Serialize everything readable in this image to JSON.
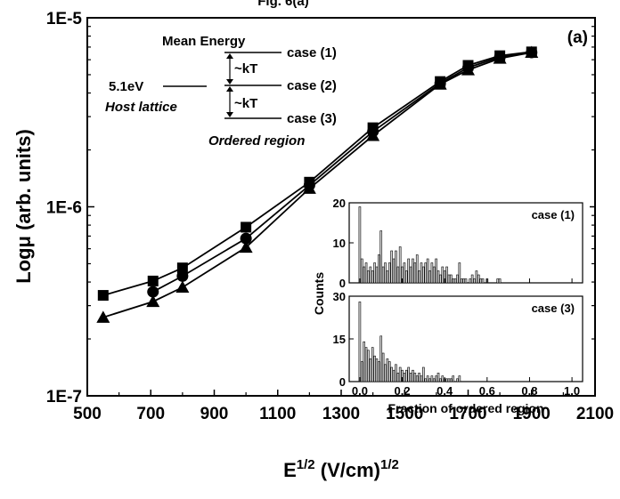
{
  "chart_data": [
    {
      "type": "line",
      "top_title": "Fig. 6(a)",
      "panel_label": "(a)",
      "xlabel": "E1/2 (V/cm)1/2",
      "xlabel_base": "E",
      "xlabel_sup1": "1/2",
      "xlabel_mid": " (V/cm)",
      "xlabel_sup2": "1/2",
      "ylabel": "Logμ (arb. units)",
      "xlim": [
        500,
        2100
      ],
      "ylim": [
        1e-07,
        1e-05
      ],
      "yscale": "log",
      "xticks": [
        500,
        700,
        900,
        1100,
        1300,
        1500,
        1700,
        1900,
        2100
      ],
      "xtick_labels": [
        "500",
        "700",
        "900",
        "1100",
        "1300",
        "1500",
        "1700",
        "1900",
        "2100"
      ],
      "yticks": [
        1e-07,
        1e-06,
        1e-05
      ],
      "ytick_labels": [
        "1E-7",
        "1E-6",
        "1E-5"
      ],
      "series": [
        {
          "marker": "square",
          "x": [
            550,
            707,
            800,
            1000,
            1200,
            1400,
            1612,
            1700,
            1800,
            1900
          ],
          "y": [
            3.4e-07,
            4.05e-07,
            4.75e-07,
            7.8e-07,
            1.35e-06,
            2.62e-06,
            4.6e-06,
            5.6e-06,
            6.3e-06,
            6.6e-06
          ]
        },
        {
          "marker": "circle",
          "x": [
            707,
            800,
            1000,
            1200,
            1400,
            1612,
            1700,
            1800,
            1900
          ],
          "y": [
            3.55e-07,
            4.3e-07,
            6.8e-07,
            1.3e-06,
            2.5e-06,
            4.5e-06,
            5.45e-06,
            6.2e-06,
            6.55e-06
          ]
        },
        {
          "marker": "triangle",
          "x": [
            550,
            707,
            800,
            1000,
            1200,
            1400,
            1612,
            1700,
            1800,
            1900
          ],
          "y": [
            2.6e-07,
            3.15e-07,
            3.75e-07,
            6.1e-07,
            1.25e-06,
            2.38e-06,
            4.45e-06,
            5.3e-06,
            6.1e-06,
            6.55e-06
          ]
        }
      ],
      "annotations": {
        "mean_energy": "Mean Energy",
        "case1": "case (1)",
        "case2": "case (2)",
        "case3": "case (3)",
        "kt": "~kT",
        "host_energy": "5.1eV",
        "host_lattice": "Host lattice",
        "ordered_region": "Ordered region"
      }
    },
    {
      "type": "bar",
      "title": "case (1)",
      "xlim": [
        -0.05,
        1.05
      ],
      "ylim": [
        0,
        20
      ],
      "yticks": [
        0,
        10,
        20
      ],
      "x": [
        0.0,
        0.01,
        0.02,
        0.03,
        0.04,
        0.05,
        0.06,
        0.07,
        0.08,
        0.09,
        0.1,
        0.11,
        0.12,
        0.13,
        0.14,
        0.15,
        0.16,
        0.17,
        0.18,
        0.19,
        0.2,
        0.21,
        0.22,
        0.23,
        0.24,
        0.25,
        0.26,
        0.27,
        0.28,
        0.29,
        0.3,
        0.31,
        0.32,
        0.33,
        0.34,
        0.35,
        0.36,
        0.37,
        0.38,
        0.39,
        0.4,
        0.41,
        0.42,
        0.43,
        0.44,
        0.45,
        0.46,
        0.47,
        0.48,
        0.49,
        0.5,
        0.51,
        0.52,
        0.53,
        0.54,
        0.55,
        0.56,
        0.57,
        0.58,
        0.59,
        0.6,
        0.61,
        0.62,
        0.63,
        0.64,
        0.65,
        0.66,
        0.67,
        0.68,
        0.69,
        0.7
      ],
      "values": [
        19,
        6,
        4,
        5,
        3,
        4,
        3,
        5,
        4,
        7,
        13,
        4,
        5,
        3,
        5,
        8,
        6,
        8,
        4,
        9,
        4,
        5,
        3,
        6,
        4,
        6,
        5,
        7,
        3,
        5,
        4,
        5,
        6,
        3,
        5,
        4,
        6,
        3,
        2,
        4,
        3,
        4,
        2,
        2,
        1,
        1,
        2,
        5,
        1,
        1,
        1,
        0,
        1,
        2,
        1,
        3,
        2,
        1,
        1,
        0,
        1,
        0,
        0,
        0,
        0,
        1,
        1,
        0,
        0,
        0,
        0
      ]
    },
    {
      "type": "bar",
      "title": "case (3)",
      "xlim": [
        -0.05,
        1.05
      ],
      "ylim": [
        0,
        30
      ],
      "yticks": [
        0,
        15,
        30
      ],
      "xticks": [
        0.0,
        0.2,
        0.4,
        0.6,
        0.8,
        1.0
      ],
      "xtick_labels": [
        "0.0",
        "0.2",
        "0.4",
        "0.6",
        "0.8",
        "1.0"
      ],
      "xlabel": "Fraction of ordered region",
      "ylabel": "Counts",
      "x": [
        0.0,
        0.01,
        0.02,
        0.03,
        0.04,
        0.05,
        0.06,
        0.07,
        0.08,
        0.09,
        0.1,
        0.11,
        0.12,
        0.13,
        0.14,
        0.15,
        0.16,
        0.17,
        0.18,
        0.19,
        0.2,
        0.21,
        0.22,
        0.23,
        0.24,
        0.25,
        0.26,
        0.27,
        0.28,
        0.29,
        0.3,
        0.31,
        0.32,
        0.33,
        0.34,
        0.35,
        0.36,
        0.37,
        0.38,
        0.39,
        0.4,
        0.41,
        0.42,
        0.43,
        0.44,
        0.45,
        0.46,
        0.47,
        0.48,
        0.49,
        0.5
      ],
      "values": [
        28,
        7,
        14,
        12,
        11,
        8,
        12,
        9,
        8,
        7,
        16,
        10,
        6,
        8,
        7,
        5,
        4,
        6,
        3,
        5,
        4,
        3,
        4,
        5,
        3,
        4,
        3,
        2,
        3,
        2,
        5,
        1,
        2,
        1,
        2,
        1,
        2,
        3,
        1,
        2,
        1,
        1,
        1,
        1,
        2,
        0,
        1,
        2,
        0,
        0,
        0
      ]
    }
  ]
}
